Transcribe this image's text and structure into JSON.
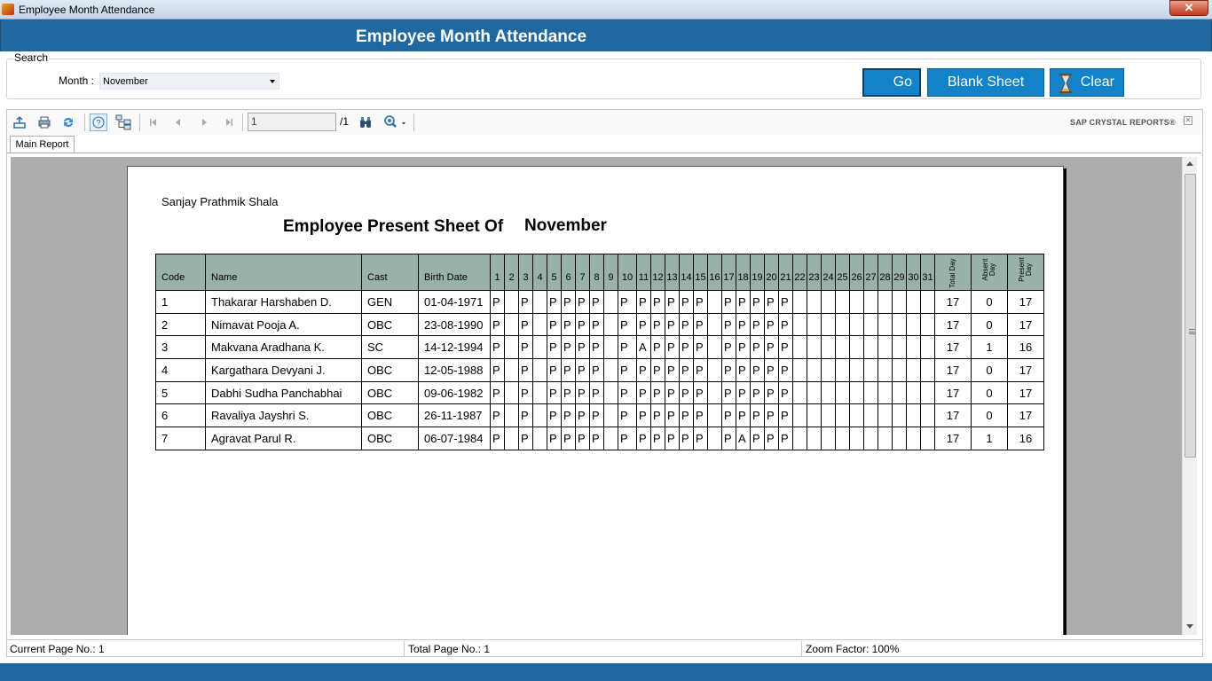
{
  "window": {
    "title": "Employee Month Attendance",
    "close_glyph": "✕"
  },
  "header": {
    "title": "Employee Month Attendance"
  },
  "search": {
    "legend": "Search",
    "month_label": "Month :",
    "month_value": "November",
    "go_label": "Go",
    "blank_sheet_label": "Blank Sheet",
    "clear_label": "Clear"
  },
  "toolbar": {
    "page_value": "1",
    "page_total": "/1",
    "brand": "SAP CRYSTAL REPORTS®",
    "icons": [
      "export-icon",
      "print-icon",
      "refresh-icon",
      "help-icon",
      "group-tree-icon",
      "first-page-icon",
      "previous-page-icon",
      "next-page-icon",
      "last-page-icon",
      "find-icon",
      "zoom-icon"
    ]
  },
  "tabs": {
    "main_report": "Main Report"
  },
  "report": {
    "school": "Sanjay Prathmik Shala",
    "title": "Employee Present Sheet Of",
    "month": "November",
    "columns": {
      "code": "Code",
      "name": "Name",
      "cast": "Cast",
      "birth_date": "Birth Date",
      "days": [
        "1",
        "2",
        "3",
        "4",
        "5",
        "6",
        "7",
        "8",
        "9",
        "10",
        "11",
        "12",
        "13",
        "14",
        "15",
        "16",
        "17",
        "18",
        "19",
        "20",
        "21",
        "22",
        "23",
        "24",
        "25",
        "26",
        "27",
        "28",
        "29",
        "30",
        "31"
      ],
      "total_day": "Total Day",
      "absent_day": "Absent Day",
      "present_day": "Present Day"
    },
    "rows": [
      {
        "code": "1",
        "name": "Thakarar Harshaben  D.",
        "cast": "GEN",
        "birth_date": "01-04-1971",
        "days": [
          "P",
          "",
          "P",
          "",
          "P",
          "P",
          "P",
          "P",
          "",
          "P",
          "P",
          "P",
          "P",
          "P",
          "P",
          "",
          "P",
          "P",
          "P",
          "P",
          "P",
          "",
          "",
          "",
          "",
          "",
          "",
          "",
          "",
          "",
          ""
        ],
        "total": "17",
        "absent": "0",
        "present": "17"
      },
      {
        "code": "2",
        "name": "Nimavat Pooja A.",
        "cast": "OBC",
        "birth_date": "23-08-1990",
        "days": [
          "P",
          "",
          "P",
          "",
          "P",
          "P",
          "P",
          "P",
          "",
          "P",
          "P",
          "P",
          "P",
          "P",
          "P",
          "",
          "P",
          "P",
          "P",
          "P",
          "P",
          "",
          "",
          "",
          "",
          "",
          "",
          "",
          "",
          "",
          ""
        ],
        "total": "17",
        "absent": "0",
        "present": "17"
      },
      {
        "code": "3",
        "name": "Makvana Aradhana K.",
        "cast": "SC",
        "birth_date": "14-12-1994",
        "days": [
          "P",
          "",
          "P",
          "",
          "P",
          "P",
          "P",
          "P",
          "",
          "P",
          "A",
          "P",
          "P",
          "P",
          "P",
          "",
          "P",
          "P",
          "P",
          "P",
          "P",
          "",
          "",
          "",
          "",
          "",
          "",
          "",
          "",
          "",
          ""
        ],
        "total": "17",
        "absent": "1",
        "present": "16"
      },
      {
        "code": "4",
        "name": "Kargathara Devyani J.",
        "cast": "OBC",
        "birth_date": "12-05-1988",
        "days": [
          "P",
          "",
          "P",
          "",
          "P",
          "P",
          "P",
          "P",
          "",
          "P",
          "P",
          "P",
          "P",
          "P",
          "P",
          "",
          "P",
          "P",
          "P",
          "P",
          "P",
          "",
          "",
          "",
          "",
          "",
          "",
          "",
          "",
          "",
          ""
        ],
        "total": "17",
        "absent": "0",
        "present": "17"
      },
      {
        "code": "5",
        "name": "Dabhi Sudha Panchabhai",
        "cast": "OBC",
        "birth_date": "09-06-1982",
        "days": [
          "P",
          "",
          "P",
          "",
          "P",
          "P",
          "P",
          "P",
          "",
          "P",
          "P",
          "P",
          "P",
          "P",
          "P",
          "",
          "P",
          "P",
          "P",
          "P",
          "P",
          "",
          "",
          "",
          "",
          "",
          "",
          "",
          "",
          "",
          ""
        ],
        "total": "17",
        "absent": "0",
        "present": "17"
      },
      {
        "code": "6",
        "name": "Ravaliya Jayshri S.",
        "cast": "OBC",
        "birth_date": "26-11-1987",
        "days": [
          "P",
          "",
          "P",
          "",
          "P",
          "P",
          "P",
          "P",
          "",
          "P",
          "P",
          "P",
          "P",
          "P",
          "P",
          "",
          "P",
          "P",
          "P",
          "P",
          "P",
          "",
          "",
          "",
          "",
          "",
          "",
          "",
          "",
          "",
          ""
        ],
        "total": "17",
        "absent": "0",
        "present": "17"
      },
      {
        "code": "7",
        "name": "Agravat Parul R.",
        "cast": "OBC",
        "birth_date": "06-07-1984",
        "days": [
          "P",
          "",
          "P",
          "",
          "P",
          "P",
          "P",
          "P",
          "",
          "P",
          "P",
          "P",
          "P",
          "P",
          "P",
          "",
          "P",
          "A",
          "P",
          "P",
          "P",
          "",
          "",
          "",
          "",
          "",
          "",
          "",
          "",
          "",
          ""
        ],
        "total": "17",
        "absent": "1",
        "present": "16"
      }
    ]
  },
  "status": {
    "current_page": "Current Page No.: 1",
    "total_page": "Total Page No.: 1",
    "zoom": "Zoom Factor: 100%"
  }
}
